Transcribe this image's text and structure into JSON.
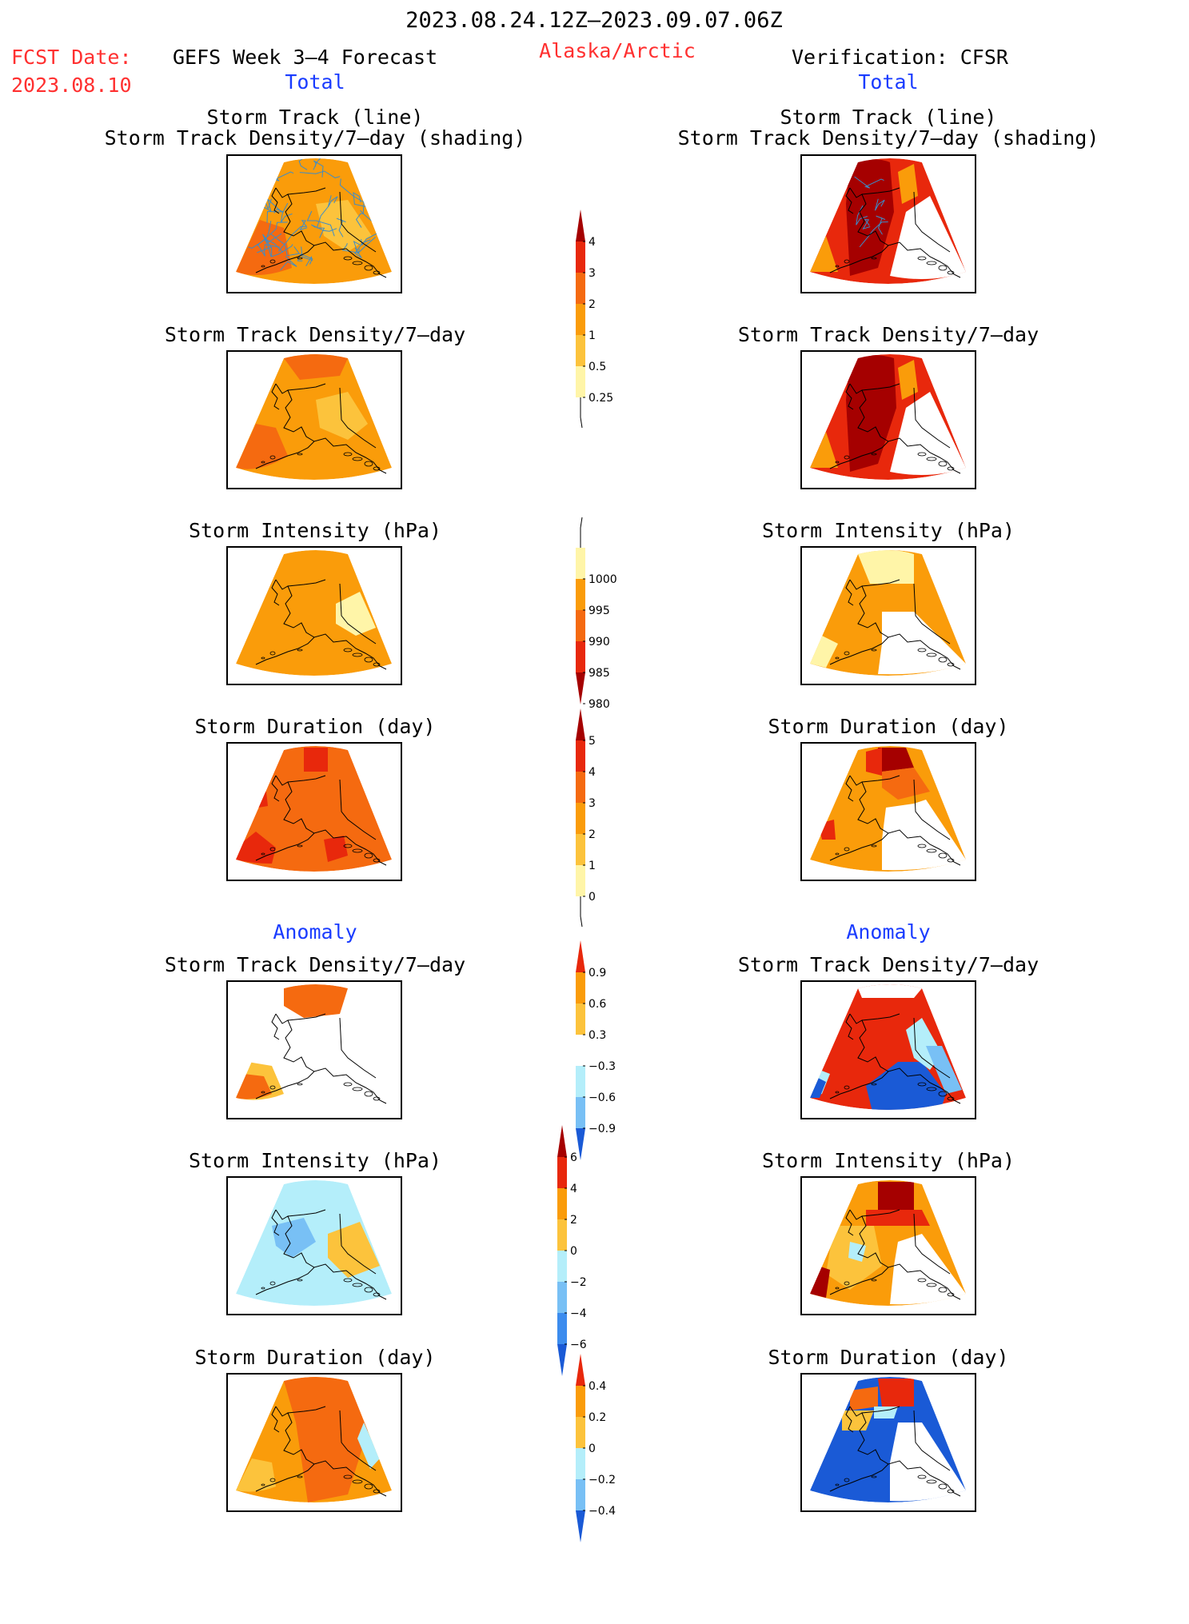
{
  "header": {
    "period": "2023.08.24.12Z–2023.09.07.06Z",
    "region": "Alaska/Arctic",
    "fcst_label": "FCST Date:",
    "fcst_date": "2023.08.10",
    "forecast_label": "GEFS Week 3–4 Forecast",
    "verification_label": "Verification: CFSR",
    "total_left": "Total",
    "total_right": "Total",
    "anomaly_left": "Anomaly",
    "anomaly_right": "Anomaly"
  },
  "panel_titles": {
    "track_line": "Storm Track (line)",
    "track_shading": "Storm Track Density/7–day (shading)",
    "density": "Storm Track Density/7–day",
    "intensity": "Storm Intensity (hPa)",
    "duration": "Storm Duration (day)"
  },
  "colorbars": {
    "density_total": [
      "4",
      "3",
      "2",
      "1",
      "0.5",
      "0.25"
    ],
    "intensity_total": [
      "1000",
      "995",
      "990",
      "985",
      "980"
    ],
    "duration_total": [
      "5",
      "4",
      "3",
      "2",
      "1",
      "0"
    ],
    "density_anom": [
      "0.9",
      "0.6",
      "0.3",
      "−0.3",
      "−0.6",
      "−0.9"
    ],
    "intensity_anom": [
      "6",
      "4",
      "2",
      "0",
      "−2",
      "−4",
      "−6"
    ],
    "duration_anom": [
      "0.4",
      "0.2",
      "0",
      "−0.2",
      "−0.4"
    ]
  },
  "colors": {
    "c_darkred": "#a50000",
    "c_red": "#e8280c",
    "c_orange_red": "#f56a10",
    "c_orange": "#fa9c0a",
    "c_light_orange": "#fcc33c",
    "c_pale_yellow": "#fff5a8",
    "c_light_blue": "#b4eefa",
    "c_mid_blue": "#78c0f5",
    "c_blue": "#3c8cee",
    "c_dark_blue": "#1a5ad6",
    "track_line": "#3c8cc8"
  }
}
